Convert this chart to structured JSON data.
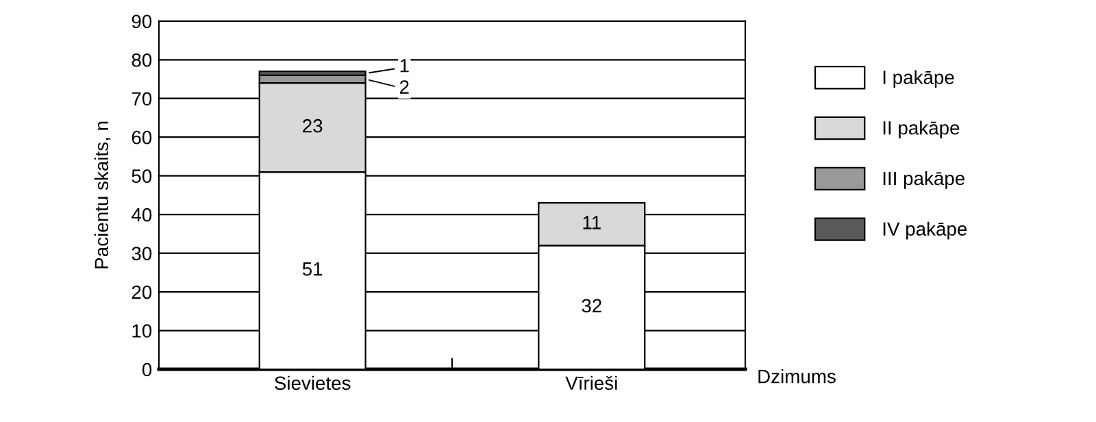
{
  "chart_data": {
    "type": "bar",
    "stacked": true,
    "categories": [
      "Sievietes",
      "Vīrieši"
    ],
    "ylabel": "Pacientu skaits, n",
    "xlabel": "Dzimums",
    "ylim": [
      0,
      90
    ],
    "yticks": [
      0,
      10,
      20,
      30,
      40,
      50,
      60,
      70,
      80,
      90
    ],
    "grid": "y",
    "legend": "right",
    "series": [
      {
        "name": "I pakāpe",
        "color": "#ffffff",
        "values": [
          51,
          32
        ],
        "value_labels": [
          "51",
          "32"
        ]
      },
      {
        "name": "II pakāpe",
        "color": "#d9d9d9",
        "values": [
          23,
          11
        ],
        "value_labels": [
          "23",
          "11"
        ]
      },
      {
        "name": "III pakāpe",
        "color": "#999999",
        "values": [
          2,
          null
        ],
        "value_labels": [
          "2",
          null
        ]
      },
      {
        "name": "IV pakāpe",
        "color": "#595959",
        "values": [
          1,
          null
        ],
        "value_labels": [
          "1",
          null
        ]
      }
    ]
  }
}
